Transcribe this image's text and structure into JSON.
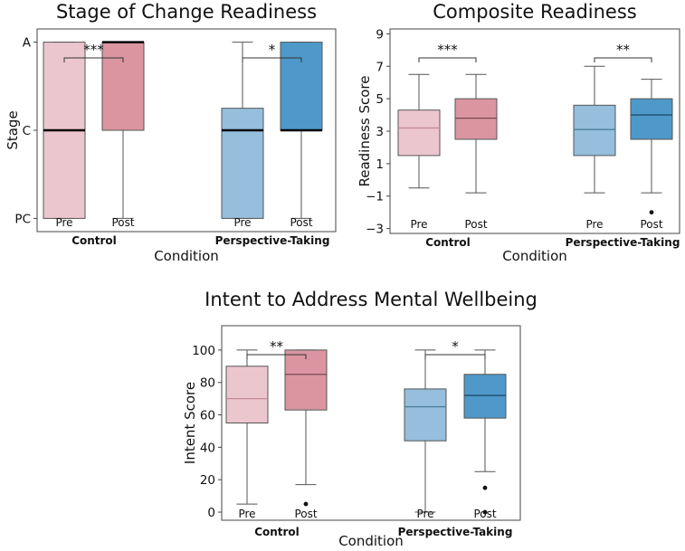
{
  "chart_data": [
    {
      "type": "box",
      "title": "Stage of Change Readiness",
      "xlabel": "Condition",
      "ylabel": "Stage",
      "ylim": [
        -0.15,
        2.15
      ],
      "yticks": [
        {
          "value": 0,
          "label": "PC"
        },
        {
          "value": 1,
          "label": "C"
        },
        {
          "value": 2,
          "label": "A"
        }
      ],
      "groups": [
        "Control",
        "Perspective-Taking"
      ],
      "series": [
        {
          "name": "Pre",
          "group": 0,
          "color": "#ecc6cf",
          "median_color": "#000000",
          "whisker_low": 0,
          "q1": 0,
          "median": 1,
          "q3": 2,
          "whisker_high": 2,
          "outliers": []
        },
        {
          "name": "Post",
          "group": 0,
          "color": "#da95a1",
          "median_color": "#000000",
          "whisker_low": 0,
          "q1": 1,
          "median": 2,
          "q3": 2,
          "whisker_high": 2,
          "outliers": []
        },
        {
          "name": "Pre",
          "group": 1,
          "color": "#95bfdc",
          "median_color": "#000000",
          "whisker_low": 0,
          "q1": 0,
          "median": 1,
          "q3": 1.25,
          "whisker_high": 2,
          "outliers": []
        },
        {
          "name": "Post",
          "group": 1,
          "color": "#4e99c9",
          "median_color": "#000000",
          "whisker_low": 0,
          "q1": 1,
          "median": 1,
          "q3": 2,
          "whisker_high": 2,
          "outliers": []
        }
      ],
      "significance": [
        {
          "group": 0,
          "label": "***"
        },
        {
          "group": 1,
          "label": "*"
        }
      ]
    },
    {
      "type": "box",
      "title": "Composite Readiness",
      "xlabel": "Condition",
      "ylabel": "Readiness Score",
      "ylim": [
        -3.3,
        9.3
      ],
      "yticks": [
        {
          "value": -3,
          "label": "−3"
        },
        {
          "value": -1,
          "label": "−1"
        },
        {
          "value": 1,
          "label": "1"
        },
        {
          "value": 3,
          "label": "3"
        },
        {
          "value": 5,
          "label": "5"
        },
        {
          "value": 7,
          "label": "7"
        },
        {
          "value": 9,
          "label": "9"
        }
      ],
      "groups": [
        "Control",
        "Perspective-Taking"
      ],
      "series": [
        {
          "name": "Pre",
          "group": 0,
          "color": "#ecc6cf",
          "median_color": "#c58a98",
          "whisker_low": -0.5,
          "q1": 1.5,
          "median": 3.2,
          "q3": 4.3,
          "whisker_high": 6.5,
          "outliers": []
        },
        {
          "name": "Post",
          "group": 0,
          "color": "#da95a1",
          "median_color": "#7a4a52",
          "whisker_low": -0.8,
          "q1": 2.5,
          "median": 3.8,
          "q3": 5.0,
          "whisker_high": 6.5,
          "outliers": []
        },
        {
          "name": "Pre",
          "group": 1,
          "color": "#95bfdc",
          "median_color": "#4d7d9c",
          "whisker_low": -0.8,
          "q1": 1.5,
          "median": 3.1,
          "q3": 4.6,
          "whisker_high": 7.0,
          "outliers": []
        },
        {
          "name": "Post",
          "group": 1,
          "color": "#4e99c9",
          "median_color": "#1f4e6e",
          "whisker_low": -0.8,
          "q1": 2.5,
          "median": 4.0,
          "q3": 5.0,
          "whisker_high": 6.2,
          "outliers": [
            -2.0
          ]
        }
      ],
      "significance": [
        {
          "group": 0,
          "label": "***"
        },
        {
          "group": 1,
          "label": "**"
        }
      ]
    },
    {
      "type": "box",
      "title": "Intent to Address Mental Wellbeing",
      "xlabel": "Condition",
      "ylabel": "Intent Score",
      "ylim": [
        -5,
        115
      ],
      "yticks": [
        {
          "value": 0,
          "label": "0"
        },
        {
          "value": 20,
          "label": "20"
        },
        {
          "value": 40,
          "label": "40"
        },
        {
          "value": 60,
          "label": "60"
        },
        {
          "value": 80,
          "label": "80"
        },
        {
          "value": 100,
          "label": "100"
        }
      ],
      "groups": [
        "Control",
        "Perspective-Taking"
      ],
      "series": [
        {
          "name": "Pre",
          "group": 0,
          "color": "#ecc6cf",
          "median_color": "#c58a98",
          "whisker_low": 5,
          "q1": 55,
          "median": 70,
          "q3": 90,
          "whisker_high": 100,
          "outliers": []
        },
        {
          "name": "Post",
          "group": 0,
          "color": "#da95a1",
          "median_color": "#7a4a52",
          "whisker_low": 17,
          "q1": 63,
          "median": 85,
          "q3": 100,
          "whisker_high": 100,
          "outliers": [
            5
          ]
        },
        {
          "name": "Pre",
          "group": 1,
          "color": "#95bfdc",
          "median_color": "#4d7d9c",
          "whisker_low": 0,
          "q1": 44,
          "median": 65,
          "q3": 76,
          "whisker_high": 100,
          "outliers": []
        },
        {
          "name": "Post",
          "group": 1,
          "color": "#4e99c9",
          "median_color": "#1f4e6e",
          "whisker_low": 25,
          "q1": 58,
          "median": 72,
          "q3": 85,
          "whisker_high": 100,
          "outliers": [
            15,
            0
          ]
        }
      ],
      "significance": [
        {
          "group": 0,
          "label": "**"
        },
        {
          "group": 1,
          "label": "*"
        }
      ]
    }
  ]
}
